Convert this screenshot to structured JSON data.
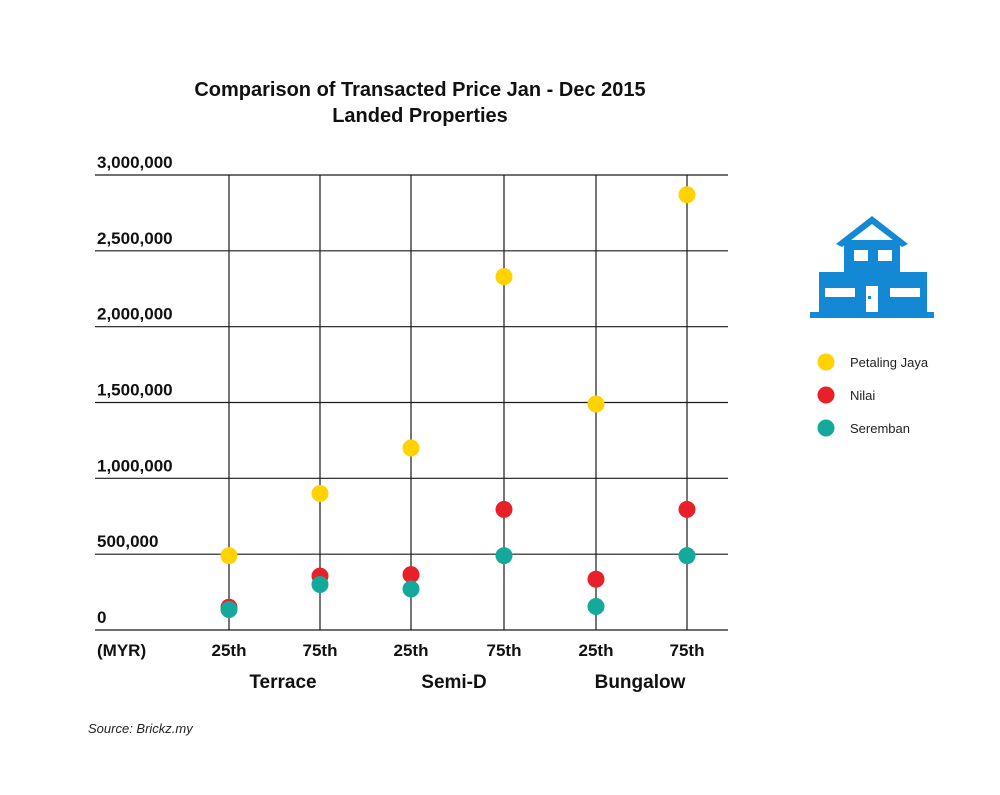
{
  "chart_data": {
    "type": "scatter",
    "title": "Comparison of Transacted Price Jan - Dec 2015",
    "subtitle": "Landed Properties",
    "ylabel_unit": "(MYR)",
    "ylim": [
      0,
      3000000
    ],
    "yticks": [
      0,
      500000,
      1000000,
      1500000,
      2000000,
      2500000,
      3000000
    ],
    "ytick_labels": [
      "0",
      "500,000",
      "1,000,000",
      "1,500,000",
      "2,000,000",
      "2,500,000",
      "3,000,000"
    ],
    "categories": [
      "25th",
      "75th",
      "25th",
      "75th",
      "25th",
      "75th"
    ],
    "groups": [
      {
        "label": "Terrace"
      },
      {
        "label": "Semi-D"
      },
      {
        "label": "Bungalow"
      }
    ],
    "series": [
      {
        "name": "Petaling Jaya",
        "color": "#FFD200",
        "values": [
          490000,
          900000,
          1200000,
          2330000,
          1490000,
          2870000
        ]
      },
      {
        "name": "Nilai",
        "color": "#E8202A",
        "values": [
          150000,
          355000,
          365000,
          795000,
          335000,
          795000
        ]
      },
      {
        "name": "Seremban",
        "color": "#14A99A",
        "values": [
          135000,
          300000,
          270000,
          490000,
          155000,
          490000
        ]
      }
    ],
    "grid": true,
    "legend_position": "right",
    "source": "Source: Brickz.my"
  },
  "icon": {
    "name": "house-icon",
    "color": "#1389D6"
  }
}
